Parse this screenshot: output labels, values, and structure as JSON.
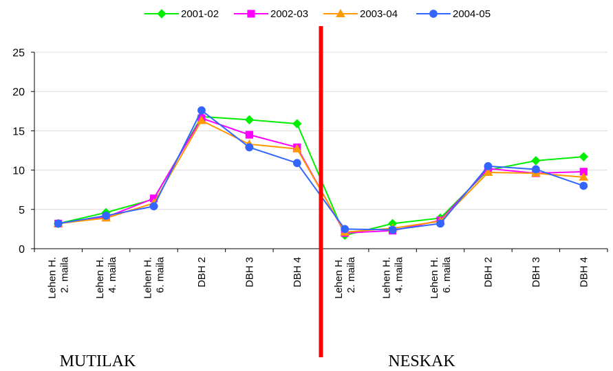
{
  "chart_data": {
    "type": "line",
    "categories": [
      [
        "Lehen H.",
        "2. maila"
      ],
      [
        "Lehen H.",
        "4. maila"
      ],
      [
        "Lehen H.",
        "6. maila"
      ],
      [
        "DBH 2"
      ],
      [
        "DBH 3"
      ],
      [
        "DBH 4"
      ],
      [
        "Lehen H.",
        "2. maila"
      ],
      [
        "Lehen H.",
        "4. maila"
      ],
      [
        "Lehen H.",
        "6. maila"
      ],
      [
        "DBH 2"
      ],
      [
        "DBH 3"
      ],
      [
        "DBH 4"
      ]
    ],
    "series": [
      {
        "name": "2001-02",
        "color": "#00ee00",
        "marker": "diamond",
        "values": [
          3.2,
          4.6,
          6.3,
          16.8,
          16.4,
          15.9,
          1.7,
          3.2,
          3.9,
          10.0,
          11.2,
          11.7
        ]
      },
      {
        "name": "2002-03",
        "color": "#ff00ff",
        "marker": "square",
        "values": [
          3.2,
          4.0,
          6.4,
          16.6,
          14.5,
          12.9,
          2.0,
          2.3,
          3.6,
          10.2,
          9.6,
          9.8
        ]
      },
      {
        "name": "2003-04",
        "color": "#ff9900",
        "marker": "triangle",
        "values": [
          3.2,
          3.9,
          5.8,
          16.3,
          13.3,
          12.7,
          2.1,
          2.6,
          3.5,
          9.7,
          9.6,
          9.1
        ]
      },
      {
        "name": "2004-05",
        "color": "#3366ff",
        "marker": "circle",
        "values": [
          3.2,
          4.2,
          5.4,
          17.6,
          12.9,
          10.9,
          2.5,
          2.4,
          3.2,
          10.5,
          10.1,
          8.0
        ]
      }
    ],
    "yticks": [
      "0",
      "5",
      "10",
      "15",
      "20",
      "25"
    ],
    "ylim": [
      0,
      25
    ],
    "grid": true,
    "legend_position": "top",
    "groups": [
      "MUTILAK",
      "NESKAK"
    ],
    "divider_color": "#ff0000"
  }
}
